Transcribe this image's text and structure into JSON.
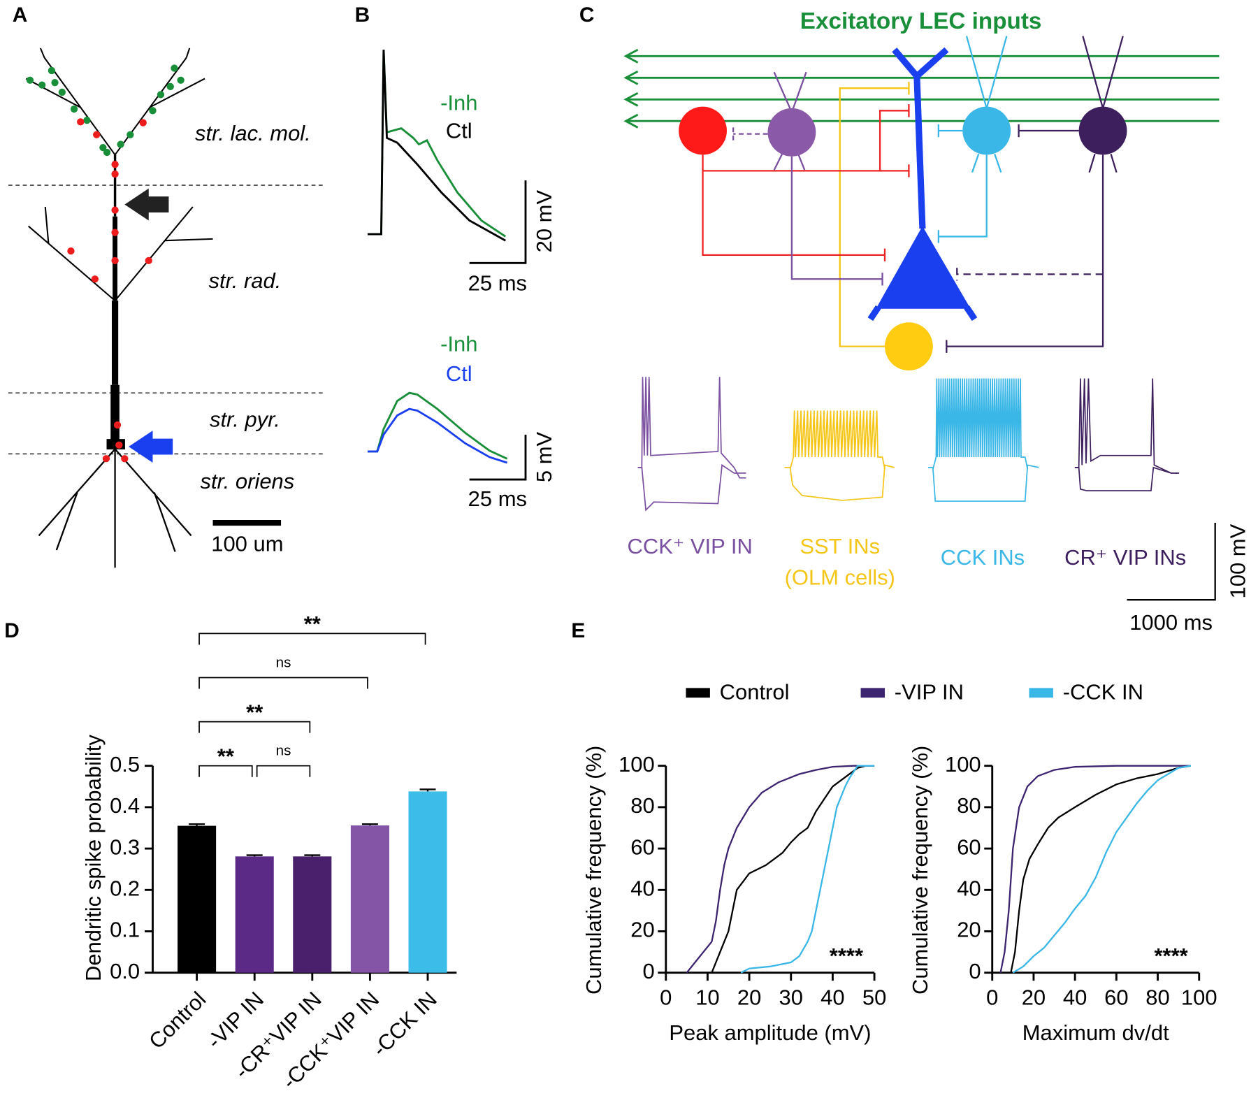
{
  "panels": {
    "A": {
      "label": "A",
      "layers": [
        "str. lac. mol.",
        "str. rad.",
        "str. pyr.",
        "str. oriens"
      ],
      "scale_bar": "100 um"
    },
    "B": {
      "label": "B",
      "top": {
        "legend": [
          "-Inh",
          "Ctl"
        ],
        "y_scale": "20 mV",
        "x_scale": "25 ms"
      },
      "bottom": {
        "legend": [
          "-Inh",
          "Ctl"
        ],
        "y_scale": "5 mV",
        "x_scale": "25 ms"
      }
    },
    "C": {
      "label": "C",
      "title": "Excitatory LEC inputs",
      "cells": [
        {
          "label": "CCK⁺ VIP IN"
        },
        {
          "label": "SST INs",
          "sublabel": "(OLM cells)"
        },
        {
          "label": "CCK INs"
        },
        {
          "label": "CR⁺ VIP INs"
        }
      ],
      "y_scale": "100 mV",
      "x_scale": "1000 ms"
    },
    "D": {
      "label": "D"
    },
    "E": {
      "label": "E"
    }
  },
  "chart_data": [
    {
      "type": "bar",
      "ylabel": "Dendritic spike probability",
      "categories": [
        "Control",
        "-VIP IN",
        "-CR⁺VIP IN",
        "-CCK⁺VIP IN",
        "-CCK IN"
      ],
      "values": [
        0.355,
        0.281,
        0.281,
        0.356,
        0.438
      ],
      "errors": [
        0.004,
        0.003,
        0.003,
        0.003,
        0.005
      ],
      "colors": [
        "#000000",
        "#5b2a86",
        "#4a1f6b",
        "#8455a6",
        "#3bbce9"
      ],
      "ylim": [
        0,
        0.5
      ],
      "yticks": [
        {
          "value": 0,
          "label": "0.0"
        },
        0.1,
        0.2,
        0.3,
        0.4,
        0.5
      ],
      "significance": [
        {
          "between": [
            "Control",
            "-VIP IN"
          ],
          "label": "**"
        },
        {
          "between": [
            "-VIP IN",
            "-CR⁺VIP IN"
          ],
          "label": "ns"
        },
        {
          "between": [
            "Control",
            "-CR⁺VIP IN"
          ],
          "label": "**"
        },
        {
          "between": [
            "Control",
            "-CCK⁺VIP IN"
          ],
          "label": "ns"
        },
        {
          "between": [
            "Control",
            "-CCK IN"
          ],
          "label": "**"
        }
      ]
    },
    {
      "type": "line",
      "xlabel": "Peak amplitude (mV)",
      "ylabel": "Cumulative frequency (%)",
      "xlim": [
        0,
        50
      ],
      "xticks": [
        0,
        10,
        20,
        30,
        40,
        50
      ],
      "ylim": [
        0,
        100
      ],
      "yticks": [
        0,
        20,
        40,
        60,
        80,
        100
      ],
      "annotation": "****",
      "series": [
        {
          "name": "Control",
          "color": "#000000",
          "x": [
            11,
            12,
            14,
            15,
            16,
            17,
            20,
            24,
            28,
            30,
            32,
            34,
            36,
            38,
            40,
            42,
            44,
            46,
            48,
            50
          ],
          "values": [
            0,
            5,
            15,
            20,
            30,
            40,
            48,
            52,
            58,
            63,
            67,
            70,
            78,
            84,
            90,
            93,
            96,
            99,
            100,
            100
          ]
        },
        {
          "name": "-VIP IN",
          "color": "#3c2470",
          "x": [
            5,
            7,
            9,
            11,
            12,
            13,
            14,
            15,
            17,
            20,
            23,
            27,
            32,
            36,
            40,
            45,
            50
          ],
          "values": [
            0,
            5,
            10,
            15,
            25,
            40,
            52,
            60,
            70,
            80,
            87,
            92,
            96,
            98,
            99.5,
            100,
            100
          ]
        },
        {
          "name": "-CCK IN",
          "color": "#3ab7e6",
          "x": [
            18,
            20,
            25,
            30,
            32,
            34,
            35,
            36,
            37,
            38,
            39,
            40,
            41,
            42,
            43,
            44,
            45,
            46,
            50
          ],
          "values": [
            0,
            2,
            3,
            5,
            8,
            15,
            20,
            30,
            40,
            50,
            60,
            70,
            80,
            85,
            90,
            94,
            97,
            100,
            100
          ]
        }
      ]
    },
    {
      "type": "line",
      "xlabel": "Maximum dv/dt",
      "ylabel": "Cumulative frequency (%)",
      "xlim": [
        0,
        100
      ],
      "xticks": [
        0,
        20,
        40,
        60,
        80,
        100
      ],
      "ylim": [
        0,
        100
      ],
      "yticks": [
        0,
        20,
        40,
        60,
        80,
        100
      ],
      "annotation": "****",
      "series": [
        {
          "color": "#000000",
          "x": [
            9,
            11,
            13,
            15,
            18,
            22,
            27,
            32,
            40,
            50,
            60,
            70,
            80,
            90,
            96
          ],
          "values": [
            0,
            10,
            30,
            45,
            55,
            62,
            70,
            75,
            80,
            86,
            91,
            94,
            96,
            99,
            100
          ]
        },
        {
          "color": "#3c2470",
          "x": [
            4,
            6,
            8,
            10,
            13,
            17,
            22,
            30,
            40,
            60,
            96
          ],
          "values": [
            0,
            10,
            30,
            60,
            80,
            90,
            95,
            98,
            99.5,
            100,
            100
          ]
        },
        {
          "color": "#3ab7e6",
          "x": [
            10,
            15,
            20,
            25,
            30,
            35,
            40,
            45,
            50,
            55,
            60,
            65,
            70,
            75,
            80,
            85,
            90,
            96
          ],
          "values": [
            0,
            3,
            8,
            12,
            18,
            24,
            31,
            37,
            46,
            58,
            68,
            75,
            82,
            88,
            93,
            96,
            99,
            100
          ]
        }
      ]
    }
  ]
}
